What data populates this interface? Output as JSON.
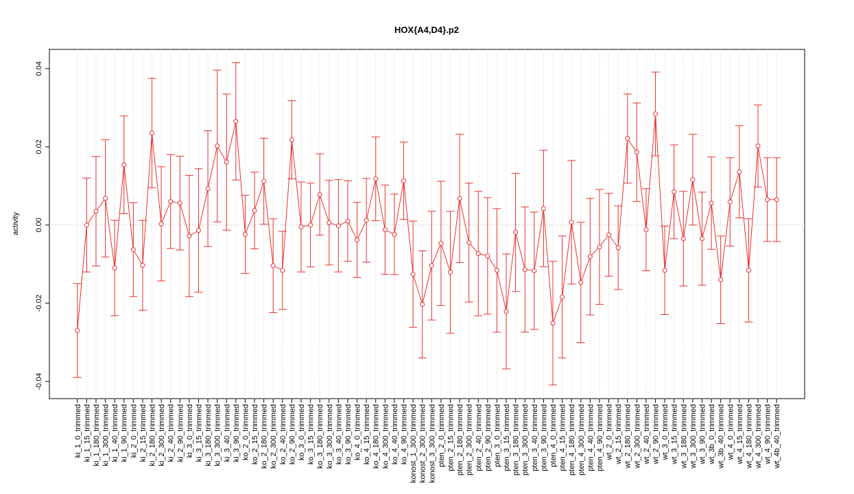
{
  "chart_data": {
    "type": "errorline",
    "title": "HOX{A4,D4}.p2",
    "y_label": "activity",
    "color": "#e8302e",
    "grid": true,
    "ylim": [
      -0.0444,
      0.0449
    ],
    "yticks": [
      -0.04,
      -0.02,
      {
        "value": 0,
        "label": "0.00"
      },
      0.02,
      0.04
    ],
    "categories": [
      "ki_1_0_trimmed",
      "ki_1_15_trimmed",
      "ki_1_180_trimmed",
      "ki_1_300_trimmed",
      "ki_1_40_trimmed",
      "ki_1_90_trimmed",
      "ki_2_0_trimmed",
      "ki_2_15_trimmed",
      "ki_2_180_trimmed",
      "ki_2_300_trimmed",
      "ki_2_40_trimmed",
      "ki_2_90_trimmed",
      "ki_3_0_trimmed",
      "ki_3_15_trimmed",
      "ki_3_180_trimmed",
      "ki_3_300_trimmed",
      "ki_3_40_trimmed",
      "ki_3_90_trimmed",
      "ko_2_0_trimmed",
      "ko_2_15_trimmed",
      "ko_2_180_trimmed",
      "ko_2_300_trimmed",
      "ko_2_40_trimmed",
      "ko_2_90_trimmed",
      "ko_3_0_trimmed",
      "ko_3_15_trimmed",
      "ko_3_180_trimmed",
      "ko_3_300_trimmed",
      "ko_3_40_trimmed",
      "ko_3_90_trimmed",
      "ko_4_0_trimmed",
      "ko_4_15_trimmed",
      "ko_4_180_trimmed",
      "ko_4_300_trimmed",
      "ko_4_40_trimmed",
      "ko_4_90_trimmed",
      "konost_1_300_trimmed",
      "konost_2_300_trimmed",
      "konost_3_300_trimmed",
      "pten_2_0_trimmed",
      "pten_2_15_trimmed",
      "pten_2_180_trimmed",
      "pten_2_300_trimmed",
      "pten_2_40_trimmed",
      "pten_2_90_trimmed",
      "pten_3_0_trimmed",
      "pten_3_15_trimmed",
      "pten_3_180_trimmed",
      "pten_3_300_trimmed",
      "pten_3_40_trimmed",
      "pten_3_90_trimmed",
      "pten_4_0_trimmed",
      "pten_4_15_trimmed",
      "pten_4_180_trimmed",
      "pten_4_300_trimmed",
      "pten_4_40_trimmed",
      "pten_4_90_trimmed",
      "wt_2_0_trimmed",
      "wt_2_15_trimmed",
      "wt_2_180_trimmed",
      "wt_2_300_trimmed",
      "wt_2_40_trimmed",
      "wt_2_90_trimmed",
      "wt_3_0_trimmed",
      "wt_3_15_trimmed",
      "wt_3_180_trimmed",
      "wt_3_300_trimmed",
      "wt_3_90_trimmed",
      "wt_3b_0_trimmed",
      "wt_3b_40_trimmed",
      "wt_4_0_trimmed",
      "wt_4_15_trimmed",
      "wt_4_180_trimmed",
      "wt_4_300_trimmed",
      "wt_4_90_trimmed",
      "wt_4b_40_trimmed"
    ],
    "values": [
      -0.027,
      0.0,
      0.0035,
      0.0068,
      -0.011,
      0.0154,
      -0.0063,
      -0.0103,
      0.0235,
      0.0003,
      0.006,
      0.0056,
      -0.0028,
      -0.0014,
      0.0093,
      0.0202,
      0.0161,
      0.0265,
      -0.0024,
      0.0037,
      0.0112,
      -0.0104,
      -0.0116,
      0.0218,
      -0.0005,
      0.0,
      0.0078,
      0.0006,
      -0.0002,
      0.001,
      -0.0038,
      0.0012,
      0.0118,
      -0.0012,
      -0.0024,
      0.0113,
      -0.0126,
      -0.0203,
      -0.0104,
      -0.0047,
      -0.0121,
      0.0068,
      -0.0045,
      -0.0073,
      -0.0079,
      -0.0116,
      -0.0221,
      -0.0019,
      -0.0114,
      -0.0117,
      0.0042,
      -0.0251,
      -0.0184,
      0.0007,
      -0.0147,
      -0.0081,
      -0.0056,
      -0.0025,
      -0.0058,
      0.0221,
      0.0186,
      -0.0012,
      0.0284,
      -0.0116,
      0.0085,
      -0.0035,
      0.0116,
      -0.0035,
      0.0056,
      -0.014,
      0.0059,
      0.0136,
      -0.0116,
      0.0202,
      0.0065,
      0.0065
    ],
    "errors": [
      0.012,
      0.012,
      0.014,
      0.015,
      0.0122,
      0.0125,
      0.012,
      0.0115,
      0.014,
      0.0146,
      0.012,
      0.012,
      0.0155,
      0.0158,
      0.0148,
      0.0194,
      0.0174,
      0.015,
      0.01,
      0.0098,
      0.011,
      0.012,
      0.01,
      0.01,
      0.0115,
      0.0107,
      0.0104,
      0.0108,
      0.0118,
      0.0103,
      0.0096,
      0.0107,
      0.0107,
      0.0114,
      0.0103,
      0.0099,
      0.0136,
      0.0137,
      0.0139,
      0.0159,
      0.0156,
      0.0164,
      0.0152,
      0.0159,
      0.0149,
      0.0158,
      0.0147,
      0.0151,
      0.016,
      0.015,
      0.0149,
      0.0158,
      0.0156,
      0.0158,
      0.0154,
      0.0149,
      0.0147,
      0.0106,
      0.0107,
      0.0114,
      0.0126,
      0.0105,
      0.0107,
      0.0113,
      0.012,
      0.0121,
      0.0116,
      0.0119,
      0.0118,
      0.0112,
      0.0113,
      0.0118,
      0.0132,
      0.0105,
      0.0107,
      0.0107
    ]
  }
}
